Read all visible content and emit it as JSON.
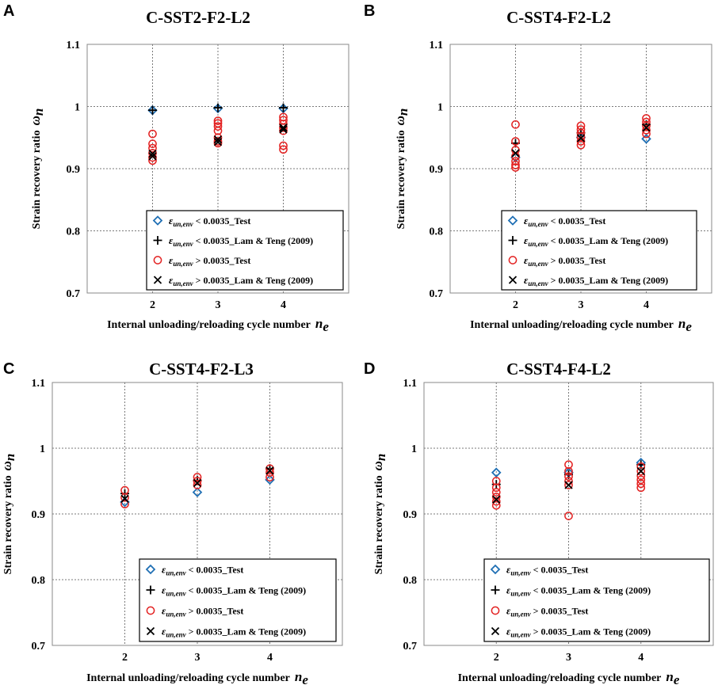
{
  "colors": {
    "test_low": "#1f6fb4",
    "lam_low": "#000000",
    "test_high": "#e32222",
    "lam_high": "#000000"
  },
  "legend": {
    "symbol": "ε",
    "subscript": "un,env",
    "items": [
      {
        "op": "< 0.0035",
        "suffix": "_Test",
        "marker": "diamond"
      },
      {
        "op": "< 0.0035",
        "suffix": "_Lam & Teng (2009)",
        "marker": "plus"
      },
      {
        "op": "> 0.0035",
        "suffix": "_Test",
        "marker": "circle"
      },
      {
        "op": "> 0.0035",
        "suffix": "_Lam & Teng (2009)",
        "marker": "cross"
      }
    ]
  },
  "chart_data": [
    {
      "panel": "A",
      "type": "scatter",
      "title": "C-SST2-F2-L2",
      "xlabel": "Internal unloading/reloading cycle number",
      "xlabel_symbol": "n",
      "xlabel_sub": "e",
      "ylabel": "Strain recovery ratio",
      "ylabel_symbol": "ω",
      "ylabel_sub": "n",
      "xlim": [
        1,
        5
      ],
      "ylim": [
        0.7,
        1.1
      ],
      "xticks": [
        "2",
        "3",
        "4"
      ],
      "yticks": [
        "0.7",
        "0.8",
        "0.9",
        "1",
        "1.1"
      ],
      "series": [
        {
          "name": "test_low",
          "marker": "diamond",
          "points": [
            [
              2,
              0.994
            ],
            [
              3,
              0.997
            ],
            [
              4,
              0.997
            ]
          ]
        },
        {
          "name": "lam_low",
          "marker": "plus",
          "points": [
            [
              2,
              0.994
            ],
            [
              3,
              0.998
            ],
            [
              4,
              0.998
            ]
          ]
        },
        {
          "name": "test_high",
          "marker": "circle",
          "points": [
            [
              2,
              0.956
            ],
            [
              2,
              0.94
            ],
            [
              2,
              0.933
            ],
            [
              2,
              0.925
            ],
            [
              2,
              0.918
            ],
            [
              2,
              0.913
            ],
            [
              3,
              0.977
            ],
            [
              3,
              0.973
            ],
            [
              3,
              0.968
            ],
            [
              3,
              0.961
            ],
            [
              3,
              0.95
            ],
            [
              3,
              0.944
            ],
            [
              3,
              0.941
            ],
            [
              4,
              0.983
            ],
            [
              4,
              0.978
            ],
            [
              4,
              0.972
            ],
            [
              4,
              0.966
            ],
            [
              4,
              0.961
            ],
            [
              4,
              0.937
            ],
            [
              4,
              0.931
            ]
          ]
        },
        {
          "name": "lam_high",
          "marker": "cross",
          "points": [
            [
              2,
              0.924
            ],
            [
              2,
              0.92
            ],
            [
              3,
              0.947
            ],
            [
              3,
              0.943
            ],
            [
              4,
              0.966
            ],
            [
              4,
              0.963
            ]
          ]
        }
      ]
    },
    {
      "panel": "B",
      "type": "scatter",
      "title": "C-SST4-F2-L2",
      "xlabel": "Internal unloading/reloading cycle number",
      "xlabel_symbol": "n",
      "xlabel_sub": "e",
      "ylabel": "Strain recovery ratio",
      "ylabel_symbol": "ω",
      "ylabel_sub": "n",
      "xlim": [
        1,
        5
      ],
      "ylim": [
        0.7,
        1.1
      ],
      "xticks": [
        "2",
        "3",
        "4"
      ],
      "yticks": [
        "0.7",
        "0.8",
        "0.9",
        "1",
        "1.1"
      ],
      "series": [
        {
          "name": "test_low",
          "marker": "diamond",
          "points": [
            [
              2,
              0.918
            ],
            [
              3,
              0.95
            ],
            [
              4,
              0.948
            ]
          ]
        },
        {
          "name": "lam_low",
          "marker": "plus",
          "points": [
            [
              2,
              0.941
            ],
            [
              3,
              0.958
            ],
            [
              4,
              0.971
            ]
          ]
        },
        {
          "name": "test_high",
          "marker": "circle",
          "points": [
            [
              2,
              0.971
            ],
            [
              2,
              0.944
            ],
            [
              2,
              0.93
            ],
            [
              2,
              0.92
            ],
            [
              2,
              0.912
            ],
            [
              2,
              0.906
            ],
            [
              2,
              0.902
            ],
            [
              3,
              0.969
            ],
            [
              3,
              0.963
            ],
            [
              3,
              0.957
            ],
            [
              3,
              0.951
            ],
            [
              3,
              0.944
            ],
            [
              3,
              0.938
            ],
            [
              4,
              0.981
            ],
            [
              4,
              0.975
            ],
            [
              4,
              0.969
            ],
            [
              4,
              0.962
            ],
            [
              4,
              0.956
            ]
          ]
        },
        {
          "name": "lam_high",
          "marker": "cross",
          "points": [
            [
              2,
              0.925
            ],
            [
              3,
              0.949
            ],
            [
              4,
              0.966
            ]
          ]
        }
      ]
    },
    {
      "panel": "C",
      "type": "scatter",
      "title": "C-SST4-F2-L3",
      "xlabel": "Internal unloading/reloading cycle number",
      "xlabel_symbol": "n",
      "xlabel_sub": "e",
      "ylabel": "Strain recovery ratio",
      "ylabel_symbol": "ω",
      "ylabel_sub": "n",
      "xlim": [
        1,
        5
      ],
      "ylim": [
        0.7,
        1.1
      ],
      "xticks": [
        "2",
        "3",
        "4"
      ],
      "yticks": [
        "0.7",
        "0.8",
        "0.9",
        "1",
        "1.1"
      ],
      "series": [
        {
          "name": "test_low",
          "marker": "diamond",
          "points": [
            [
              2,
              0.918
            ],
            [
              3,
              0.933
            ],
            [
              4,
              0.952
            ]
          ]
        },
        {
          "name": "lam_low",
          "marker": "plus",
          "points": [
            [
              2,
              0.931
            ],
            [
              3,
              0.951
            ],
            [
              4,
              0.969
            ]
          ]
        },
        {
          "name": "test_high",
          "marker": "circle",
          "points": [
            [
              2,
              0.936
            ],
            [
              2,
              0.925
            ],
            [
              2,
              0.915
            ],
            [
              3,
              0.956
            ],
            [
              3,
              0.95
            ],
            [
              3,
              0.944
            ],
            [
              4,
              0.969
            ],
            [
              4,
              0.963
            ],
            [
              4,
              0.956
            ]
          ]
        },
        {
          "name": "lam_high",
          "marker": "cross",
          "points": [
            [
              2,
              0.923
            ],
            [
              3,
              0.947
            ],
            [
              4,
              0.966
            ]
          ]
        }
      ]
    },
    {
      "panel": "D",
      "type": "scatter",
      "title": "C-SST4-F4-L2",
      "xlabel": "Internal unloading/reloading cycle number",
      "xlabel_symbol": "n",
      "xlabel_sub": "e",
      "ylabel": "Strain recovery ratio",
      "ylabel_symbol": "ω",
      "ylabel_sub": "n",
      "xlim": [
        1,
        5
      ],
      "ylim": [
        0.7,
        1.1
      ],
      "xticks": [
        "2",
        "3",
        "4"
      ],
      "yticks": [
        "0.7",
        "0.8",
        "0.9",
        "1",
        "1.1"
      ],
      "series": [
        {
          "name": "test_low",
          "marker": "diamond",
          "points": [
            [
              2,
              0.963
            ],
            [
              3,
              0.963
            ],
            [
              4,
              0.978
            ]
          ]
        },
        {
          "name": "lam_low",
          "marker": "plus",
          "points": [
            [
              2,
              0.945
            ],
            [
              3,
              0.96
            ],
            [
              4,
              0.975
            ]
          ]
        },
        {
          "name": "test_high",
          "marker": "circle",
          "points": [
            [
              2,
              0.95
            ],
            [
              2,
              0.94
            ],
            [
              2,
              0.933
            ],
            [
              2,
              0.926
            ],
            [
              2,
              0.919
            ],
            [
              2,
              0.913
            ],
            [
              3,
              0.975
            ],
            [
              3,
              0.965
            ],
            [
              3,
              0.957
            ],
            [
              3,
              0.95
            ],
            [
              3,
              0.944
            ],
            [
              3,
              0.897
            ],
            [
              4,
              0.972
            ],
            [
              4,
              0.965
            ],
            [
              4,
              0.958
            ],
            [
              4,
              0.952
            ],
            [
              4,
              0.946
            ],
            [
              4,
              0.94
            ]
          ]
        },
        {
          "name": "lam_high",
          "marker": "cross",
          "points": [
            [
              2,
              0.922
            ],
            [
              3,
              0.944
            ],
            [
              4,
              0.965
            ]
          ]
        }
      ]
    }
  ]
}
